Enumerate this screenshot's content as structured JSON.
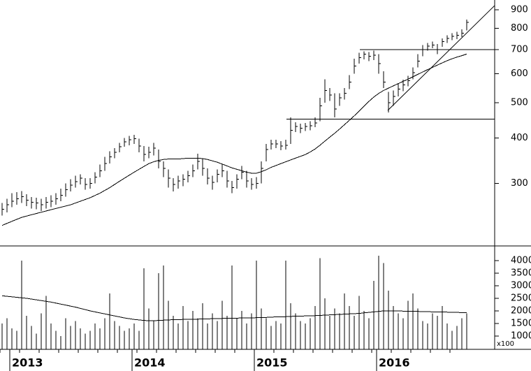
{
  "chart_data": [
    {
      "type": "hlc",
      "log": true,
      "color": "#000000",
      "ylim": [
        202,
        957
      ],
      "yticks": [
        300,
        400,
        500,
        600,
        700,
        800,
        900
      ],
      "high": [
        265,
        272,
        282,
        284,
        286,
        280,
        275,
        274,
        272,
        275,
        278,
        282,
        290,
        300,
        308,
        315,
        318,
        310,
        310,
        322,
        338,
        355,
        368,
        375,
        388,
        400,
        405,
        408,
        398,
        380,
        378,
        388,
        372,
        345,
        328,
        310,
        315,
        318,
        325,
        338,
        362,
        350,
        330,
        315,
        328,
        338,
        325,
        305,
        318,
        335,
        325,
        310,
        312,
        345,
        385,
        395,
        395,
        392,
        395,
        455,
        442,
        438,
        440,
        445,
        455,
        515,
        580,
        548,
        530,
        530,
        548,
        595,
        660,
        685,
        692,
        688,
        695,
        680,
        610,
        535,
        540,
        565,
        578,
        592,
        625,
        680,
        720,
        730,
        735,
        725,
        750,
        765,
        775,
        782,
        795,
        845
      ],
      "low": [
        245,
        250,
        258,
        262,
        265,
        260,
        256,
        255,
        252,
        256,
        258,
        262,
        268,
        276,
        285,
        292,
        298,
        288,
        290,
        300,
        312,
        325,
        340,
        352,
        365,
        378,
        382,
        385,
        365,
        345,
        352,
        358,
        330,
        312,
        292,
        285,
        290,
        295,
        302,
        312,
        328,
        315,
        298,
        288,
        302,
        312,
        292,
        282,
        290,
        308,
        292,
        288,
        290,
        300,
        345,
        372,
        375,
        370,
        372,
        385,
        415,
        412,
        418,
        420,
        428,
        445,
        500,
        505,
        455,
        490,
        510,
        545,
        600,
        640,
        658,
        650,
        655,
        600,
        548,
        470,
        490,
        520,
        538,
        555,
        580,
        625,
        670,
        695,
        705,
        680,
        712,
        730,
        742,
        748,
        758,
        790
      ],
      "close": [
        255,
        262,
        268,
        272,
        276,
        270,
        266,
        265,
        262,
        266,
        268,
        272,
        278,
        288,
        297,
        303,
        310,
        298,
        300,
        312,
        325,
        340,
        355,
        365,
        378,
        390,
        395,
        398,
        380,
        360,
        365,
        375,
        345,
        330,
        310,
        298,
        305,
        308,
        315,
        325,
        345,
        330,
        310,
        302,
        318,
        325,
        305,
        292,
        308,
        322,
        305,
        298,
        300,
        330,
        372,
        385,
        385,
        380,
        382,
        420,
        430,
        425,
        430,
        432,
        440,
        490,
        540,
        525,
        480,
        515,
        530,
        570,
        630,
        665,
        680,
        670,
        675,
        640,
        570,
        500,
        520,
        545,
        560,
        575,
        605,
        650,
        700,
        715,
        720,
        700,
        735,
        750,
        760,
        765,
        775,
        830
      ],
      "ma": [
        230,
        233,
        236,
        239,
        242,
        244,
        246,
        248,
        250,
        252,
        254,
        256,
        258,
        260,
        262,
        265,
        268,
        271,
        274,
        278,
        282,
        287,
        292,
        298,
        304,
        310,
        316,
        322,
        328,
        334,
        340,
        344,
        347,
        349,
        350,
        350,
        350,
        351,
        352,
        352,
        352,
        351,
        349,
        346,
        343,
        339,
        335,
        331,
        328,
        325,
        322,
        320,
        320,
        323,
        327,
        332,
        336,
        340,
        344,
        348,
        352,
        356,
        360,
        366,
        373,
        382,
        392,
        402,
        412,
        423,
        435,
        447,
        460,
        474,
        489,
        504,
        518,
        530,
        540,
        548,
        556,
        564,
        572,
        580,
        589,
        598,
        607,
        616,
        625,
        634,
        643,
        652,
        660,
        667,
        673,
        680
      ],
      "levels": [
        700,
        450
      ],
      "trendline": [
        476,
        924
      ]
    },
    {
      "type": "bar",
      "color": "#000000",
      "unit_label": "x100",
      "ylim": [
        470,
        4500
      ],
      "yticks": [
        1000,
        1500,
        2000,
        2500,
        3000,
        3500,
        4000
      ],
      "categories": [
        null,
        null,
        "2013",
        null,
        null,
        null,
        null,
        null,
        null,
        null,
        null,
        null,
        null,
        null,
        null,
        null,
        null,
        null,
        null,
        null,
        null,
        null,
        null,
        null,
        null,
        null,
        null,
        "2014",
        null,
        null,
        null,
        null,
        null,
        null,
        null,
        null,
        null,
        null,
        null,
        null,
        null,
        null,
        null,
        null,
        null,
        null,
        null,
        null,
        null,
        null,
        null,
        null,
        "2015",
        null,
        null,
        null,
        null,
        null,
        null,
        null,
        null,
        null,
        null,
        null,
        null,
        null,
        null,
        null,
        null,
        null,
        null,
        null,
        null,
        null,
        null,
        null,
        null,
        "2016",
        null,
        null,
        null,
        null,
        null,
        null,
        null,
        null,
        null,
        null,
        null,
        null,
        null,
        null,
        null,
        null,
        null,
        null
      ],
      "values": [
        1500,
        1700,
        1300,
        1200,
        4000,
        1800,
        1400,
        1100,
        1900,
        2600,
        1500,
        1200,
        1000,
        1700,
        1400,
        1600,
        1300,
        1100,
        1200,
        1500,
        1300,
        1700,
        2700,
        1600,
        1400,
        1200,
        1300,
        1500,
        1200,
        3700,
        2100,
        1600,
        3500,
        3800,
        2400,
        1800,
        1500,
        2200,
        1600,
        2000,
        1700,
        2300,
        1500,
        1900,
        1600,
        2400,
        1800,
        3800,
        1700,
        2000,
        1500,
        1900,
        4000,
        2100,
        1700,
        1400,
        1600,
        1500,
        4000,
        2300,
        1900,
        1600,
        1500,
        1700,
        2200,
        4100,
        2500,
        1800,
        2100,
        1900,
        2700,
        2200,
        1800,
        2600,
        2000,
        1700,
        3200,
        4200,
        3900,
        2800,
        2200,
        1900,
        1700,
        2400,
        2700,
        2100,
        1600,
        1500,
        1900,
        1800,
        2200,
        1500,
        1200,
        1400,
        1700,
        1900
      ],
      "ma": [
        2600,
        2580,
        2560,
        2540,
        2520,
        2500,
        2470,
        2440,
        2410,
        2380,
        2350,
        2310,
        2270,
        2230,
        2190,
        2150,
        2100,
        2050,
        2000,
        1960,
        1920,
        1880,
        1840,
        1800,
        1760,
        1720,
        1690,
        1660,
        1640,
        1620,
        1610,
        1610,
        1620,
        1630,
        1640,
        1650,
        1650,
        1660,
        1660,
        1670,
        1670,
        1680,
        1680,
        1690,
        1690,
        1700,
        1700,
        1710,
        1710,
        1720,
        1720,
        1720,
        1730,
        1740,
        1740,
        1750,
        1760,
        1760,
        1770,
        1780,
        1790,
        1790,
        1800,
        1800,
        1810,
        1820,
        1830,
        1840,
        1850,
        1860,
        1870,
        1880,
        1890,
        1900,
        1920,
        1940,
        1960,
        1980,
        2000,
        2000,
        2000,
        2000,
        1990,
        1990,
        1980,
        1980,
        1970,
        1970,
        1960,
        1960,
        1950,
        1950,
        1940,
        1940,
        1930,
        1930
      ]
    }
  ]
}
